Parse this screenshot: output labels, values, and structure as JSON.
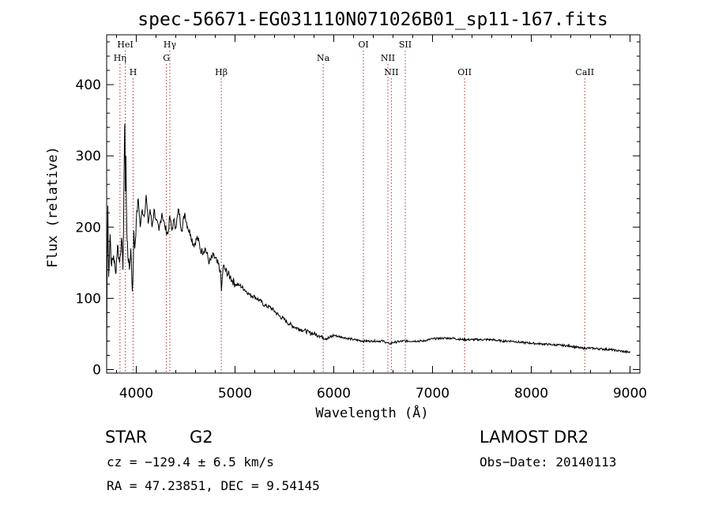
{
  "chart_data": {
    "type": "line",
    "title": "spec-56671-EG031110N071026B01_sp11-167.fits",
    "xlabel": "Wavelength (Å)",
    "ylabel": "Flux (relative)",
    "xlim": [
      3700,
      9100
    ],
    "ylim": [
      -5,
      470
    ],
    "x_ticks": [
      4000,
      5000,
      6000,
      7000,
      8000,
      9000
    ],
    "y_ticks": [
      0,
      100,
      200,
      300,
      400
    ],
    "grid": false,
    "series": [
      {
        "x": [
          3700,
          3705,
          3712,
          3720,
          3735,
          3750,
          3770,
          3790,
          3810,
          3830,
          3850,
          3865,
          3875,
          3880,
          3885,
          3890,
          3895,
          3900,
          3905,
          3910,
          3920,
          3930,
          3945,
          3960,
          3970,
          3975,
          3985,
          4000,
          4020,
          4040,
          4060,
          4080,
          4100,
          4120,
          4140,
          4160,
          4180,
          4200,
          4230,
          4260,
          4290,
          4320,
          4340,
          4360,
          4380,
          4400,
          4430,
          4460,
          4490,
          4520,
          4550,
          4580,
          4620,
          4660,
          4700,
          4740,
          4780,
          4820,
          4850,
          4862,
          4880,
          4900,
          4950,
          5000,
          5050,
          5100,
          5150,
          5200,
          5250,
          5300,
          5350,
          5400,
          5450,
          5500,
          5550,
          5600,
          5650,
          5700,
          5750,
          5800,
          5850,
          5890,
          5950,
          6000,
          6100,
          6200,
          6300,
          6400,
          6500,
          6563,
          6600,
          6700,
          6800,
          6900,
          7000,
          7100,
          7200,
          7300,
          7400,
          7500,
          7600,
          7700,
          7800,
          7900,
          8000,
          8100,
          8200,
          8300,
          8400,
          8500,
          8600,
          8700,
          8800,
          8900,
          9000
        ],
        "y": [
          5,
          150,
          230,
          130,
          190,
          145,
          160,
          135,
          175,
          150,
          185,
          140,
          260,
          320,
          345,
          250,
          300,
          230,
          190,
          180,
          150,
          140,
          170,
          110,
          150,
          195,
          170,
          210,
          240,
          200,
          225,
          215,
          245,
          205,
          225,
          200,
          225,
          210,
          195,
          220,
          200,
          190,
          215,
          195,
          210,
          200,
          225,
          195,
          220,
          200,
          190,
          175,
          185,
          165,
          170,
          150,
          160,
          150,
          140,
          110,
          145,
          140,
          130,
          120,
          118,
          112,
          105,
          102,
          97,
          90,
          88,
          82,
          75,
          70,
          64,
          60,
          57,
          55,
          52,
          50,
          48,
          45,
          44,
          48,
          45,
          42,
          40,
          40,
          40,
          36,
          38,
          40,
          40,
          40,
          43,
          44,
          44,
          42,
          42,
          42,
          42,
          40,
          40,
          38,
          37,
          36,
          35,
          34,
          33,
          30,
          30,
          29,
          28,
          26,
          24
        ]
      }
    ],
    "spectral_lines": [
      {
        "label": "HeI",
        "wavelength": 3889,
        "row": 0
      },
      {
        "label": "Hη",
        "wavelength": 3835,
        "row": 1
      },
      {
        "label": "H",
        "wavelength": 3968,
        "row": 2
      },
      {
        "label": "Hγ",
        "wavelength": 4340,
        "row": 0
      },
      {
        "label": "G",
        "wavelength": 4305,
        "row": 1
      },
      {
        "label": "Hβ",
        "wavelength": 4861,
        "row": 2
      },
      {
        "label": "Na",
        "wavelength": 5893,
        "row": 1
      },
      {
        "label": "OI",
        "wavelength": 6300,
        "row": 0
      },
      {
        "label": "NII",
        "wavelength": 6548,
        "row": 1
      },
      {
        "label": "NII",
        "wavelength": 6583,
        "row": 2
      },
      {
        "label": "OII",
        "wavelength": 7325,
        "row": 2
      },
      {
        "label": "SII",
        "wavelength": 6724,
        "row": 0
      },
      {
        "label": "CaII",
        "wavelength": 8542,
        "row": 2
      }
    ]
  },
  "info": {
    "object_class": "STAR",
    "subclass": "G2",
    "survey": "LAMOST DR2",
    "redshift": "cz = −129.4 ± 6.5 km/s",
    "obs_date": "Obs−Date: 20140113",
    "coords": "RA =  47.23851, DEC =   9.54145"
  }
}
